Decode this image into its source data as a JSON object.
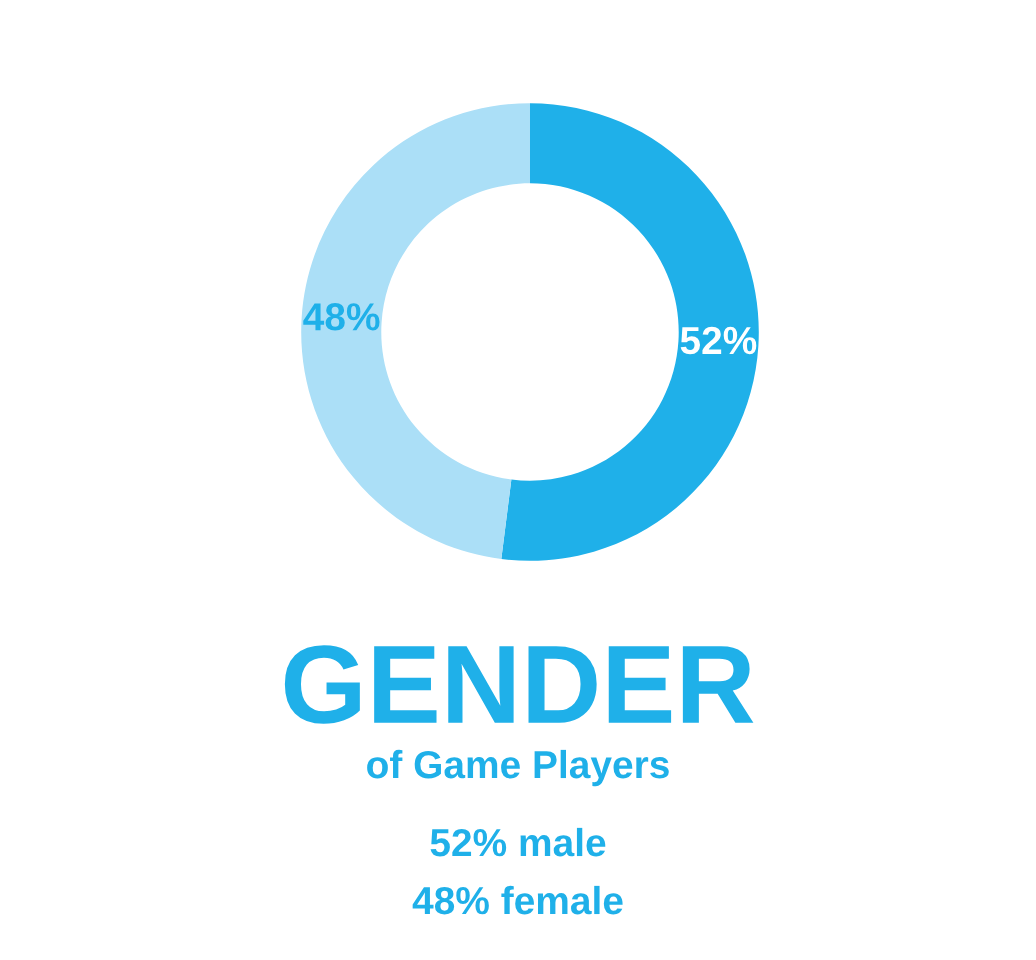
{
  "chart_data": {
    "type": "donut",
    "title": "GENDER",
    "subtitle": "of Game Players",
    "categories": [
      null,
      null
    ],
    "values": [
      52,
      48
    ],
    "colors": [
      "#1fb0e9",
      "#abdff7"
    ],
    "value_labels": [
      "52%",
      "48%"
    ],
    "annotations": [
      "52% male",
      "48% female"
    ],
    "legend": false
  }
}
